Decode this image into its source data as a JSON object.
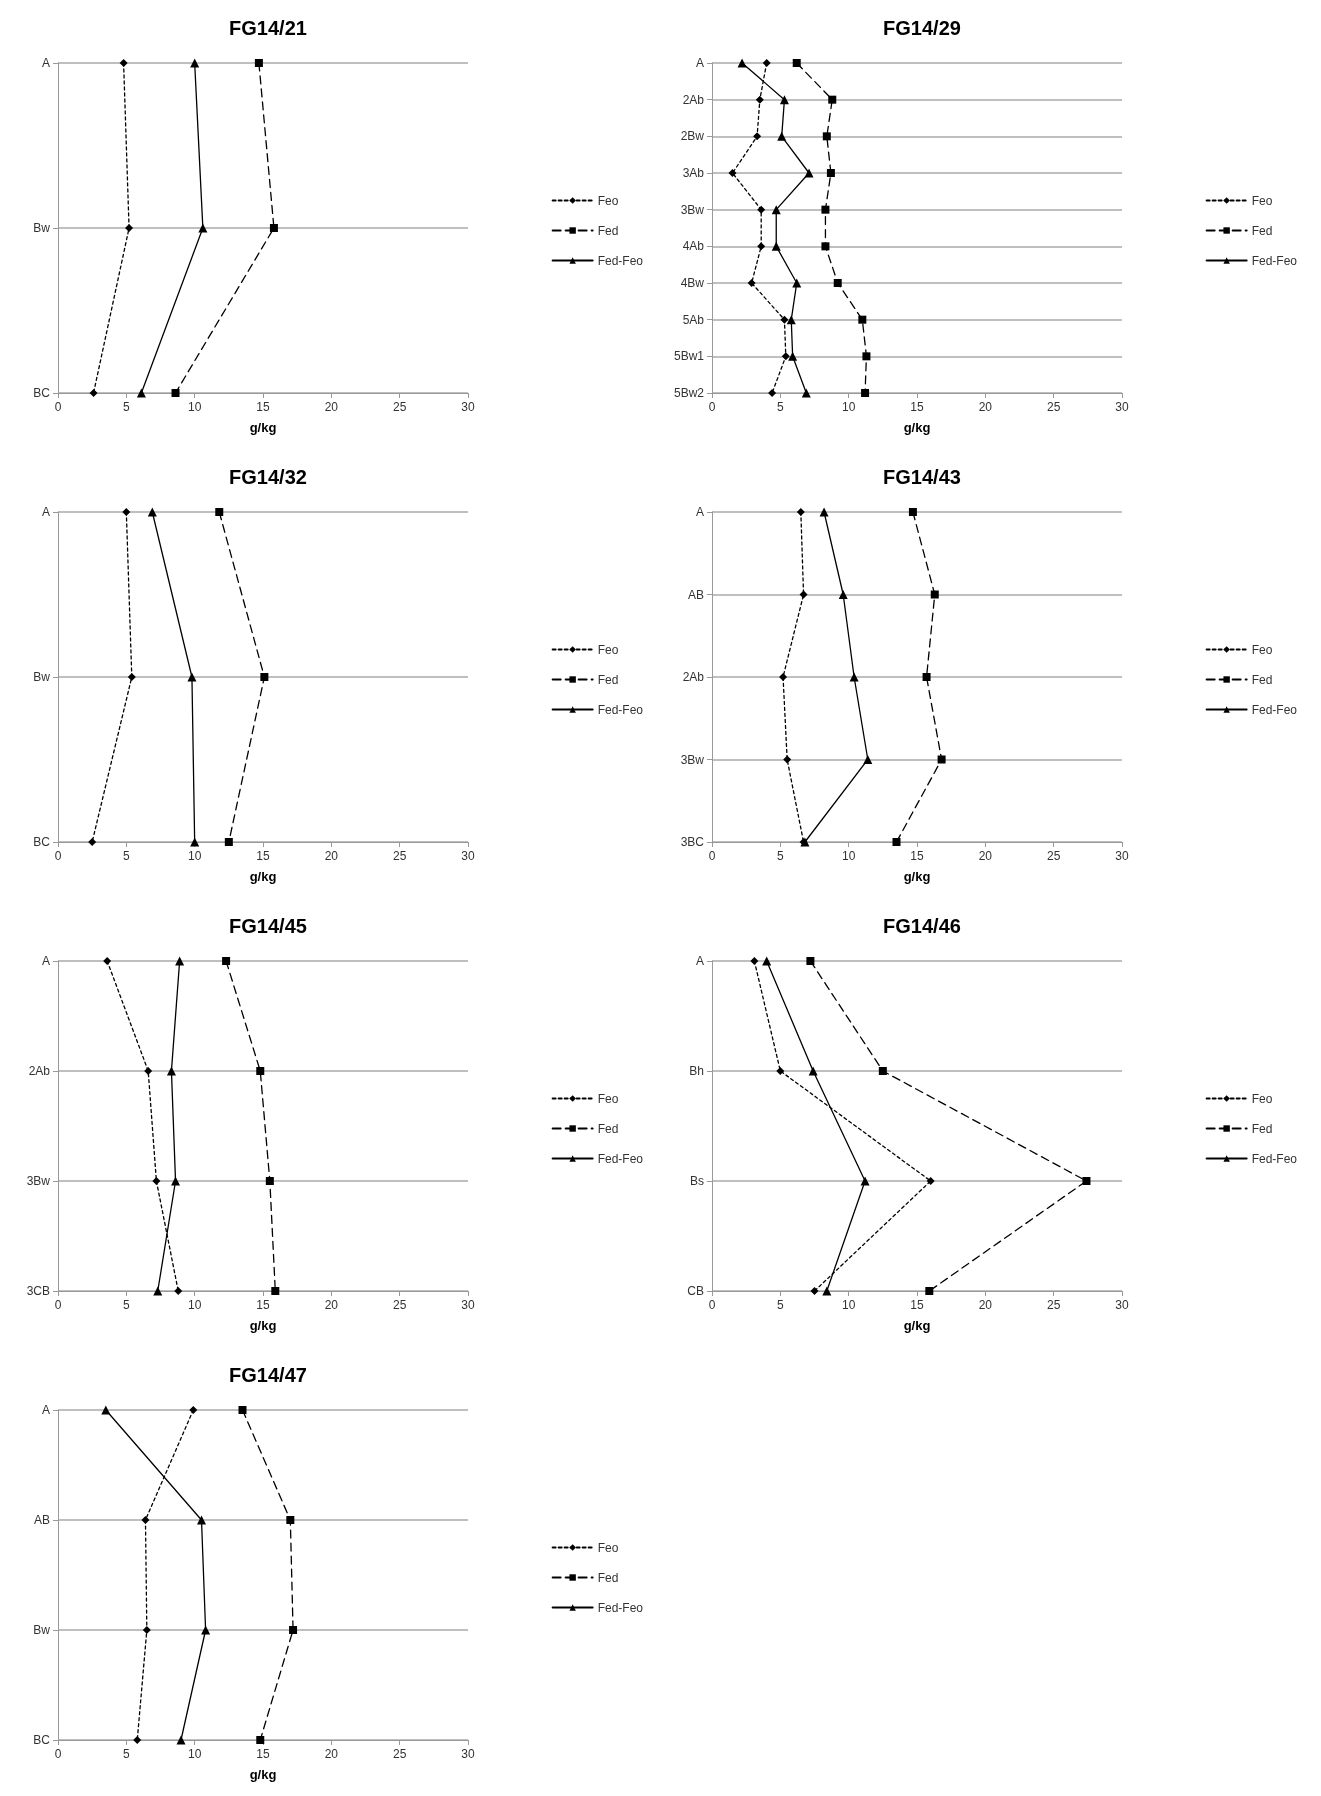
{
  "chart_data": [
    {
      "type": "line",
      "title": "FG14/21",
      "xlabel": "g/kg",
      "orientation": "horizontal",
      "categories": [
        "A",
        "Bw",
        "BC"
      ],
      "xlim": [
        0,
        30
      ],
      "xticks": [
        0,
        5,
        10,
        15,
        20,
        25,
        30
      ],
      "grid": "y",
      "legend": "right",
      "series": [
        {
          "name": "Feo",
          "color": "#000000",
          "marker": "diamond",
          "line_style": "dotted",
          "values": [
            4.8,
            5.2,
            2.6
          ]
        },
        {
          "name": "Fed",
          "color": "#000000",
          "marker": "square",
          "line_style": "dashed",
          "values": [
            14.7,
            15.8,
            8.6
          ]
        },
        {
          "name": "Fed-Feo",
          "color": "#000000",
          "marker": "triangle",
          "line_style": "solid",
          "values": [
            10.0,
            10.6,
            6.1
          ]
        }
      ]
    },
    {
      "type": "line",
      "title": "FG14/29",
      "xlabel": "g/kg",
      "orientation": "horizontal",
      "categories": [
        "A",
        "2Ab",
        "2Bw",
        "3Ab",
        "3Bw",
        "4Ab",
        "4Bw",
        "5Ab",
        "5Bw1",
        "5Bw2"
      ],
      "xlim": [
        0,
        30
      ],
      "xticks": [
        0,
        5,
        10,
        15,
        20,
        25,
        30
      ],
      "grid": "y",
      "legend": "right",
      "series": [
        {
          "name": "Feo",
          "color": "#000000",
          "marker": "diamond",
          "line_style": "dotted",
          "values": [
            4.0,
            3.5,
            3.3,
            1.5,
            3.6,
            3.6,
            2.9,
            5.3,
            5.4,
            4.4
          ]
        },
        {
          "name": "Fed",
          "color": "#000000",
          "marker": "square",
          "line_style": "dashed",
          "values": [
            6.2,
            8.8,
            8.4,
            8.7,
            8.3,
            8.3,
            9.2,
            11.0,
            11.3,
            11.2
          ]
        },
        {
          "name": "Fed-Feo",
          "color": "#000000",
          "marker": "triangle",
          "line_style": "solid",
          "values": [
            2.2,
            5.3,
            5.1,
            7.1,
            4.7,
            4.7,
            6.2,
            5.8,
            5.9,
            6.9
          ]
        }
      ]
    },
    {
      "type": "line",
      "title": "FG14/32",
      "xlabel": "g/kg",
      "orientation": "horizontal",
      "categories": [
        "A",
        "Bw",
        "BC"
      ],
      "xlim": [
        0,
        30
      ],
      "xticks": [
        0,
        5,
        10,
        15,
        20,
        25,
        30
      ],
      "grid": "y",
      "legend": "right",
      "series": [
        {
          "name": "Feo",
          "color": "#000000",
          "marker": "diamond",
          "line_style": "dotted",
          "values": [
            5.0,
            5.4,
            2.5
          ]
        },
        {
          "name": "Fed",
          "color": "#000000",
          "marker": "square",
          "line_style": "dashed",
          "values": [
            11.8,
            15.1,
            12.5
          ]
        },
        {
          "name": "Fed-Feo",
          "color": "#000000",
          "marker": "triangle",
          "line_style": "solid",
          "values": [
            6.9,
            9.8,
            10.0
          ]
        }
      ]
    },
    {
      "type": "line",
      "title": "FG14/43",
      "xlabel": "g/kg",
      "orientation": "horizontal",
      "categories": [
        "A",
        "AB",
        "2Ab",
        "3Bw",
        "3BC"
      ],
      "xlim": [
        0,
        30
      ],
      "xticks": [
        0,
        5,
        10,
        15,
        20,
        25,
        30
      ],
      "grid": "y",
      "legend": "right",
      "series": [
        {
          "name": "Feo",
          "color": "#000000",
          "marker": "diamond",
          "line_style": "dotted",
          "values": [
            6.5,
            6.7,
            5.2,
            5.5,
            6.7
          ]
        },
        {
          "name": "Fed",
          "color": "#000000",
          "marker": "square",
          "line_style": "dashed",
          "values": [
            14.7,
            16.3,
            15.7,
            16.8,
            13.5
          ]
        },
        {
          "name": "Fed-Feo",
          "color": "#000000",
          "marker": "triangle",
          "line_style": "solid",
          "values": [
            8.2,
            9.6,
            10.4,
            11.4,
            6.8
          ]
        }
      ]
    },
    {
      "type": "line",
      "title": "FG14/45",
      "xlabel": "g/kg",
      "orientation": "horizontal",
      "categories": [
        "A",
        "2Ab",
        "3Bw",
        "3CB"
      ],
      "xlim": [
        0,
        30
      ],
      "xticks": [
        0,
        5,
        10,
        15,
        20,
        25,
        30
      ],
      "grid": "y",
      "legend": "right",
      "series": [
        {
          "name": "Feo",
          "color": "#000000",
          "marker": "diamond",
          "line_style": "dotted",
          "values": [
            3.6,
            6.6,
            7.2,
            8.8
          ]
        },
        {
          "name": "Fed",
          "color": "#000000",
          "marker": "square",
          "line_style": "dashed",
          "values": [
            12.3,
            14.8,
            15.5,
            15.9
          ]
        },
        {
          "name": "Fed-Feo",
          "color": "#000000",
          "marker": "triangle",
          "line_style": "solid",
          "values": [
            8.9,
            8.3,
            8.6,
            7.3
          ]
        }
      ]
    },
    {
      "type": "line",
      "title": "FG14/46",
      "xlabel": "g/kg",
      "orientation": "horizontal",
      "categories": [
        "A",
        "Bh",
        "Bs",
        "CB"
      ],
      "xlim": [
        0,
        30
      ],
      "xticks": [
        0,
        5,
        10,
        15,
        20,
        25,
        30
      ],
      "grid": "y",
      "legend": "right",
      "series": [
        {
          "name": "Feo",
          "color": "#000000",
          "marker": "diamond",
          "line_style": "dotted",
          "values": [
            3.1,
            5.0,
            16.0,
            7.5
          ]
        },
        {
          "name": "Fed",
          "color": "#000000",
          "marker": "square",
          "line_style": "dashed",
          "values": [
            7.2,
            12.5,
            27.4,
            15.9
          ]
        },
        {
          "name": "Fed-Feo",
          "color": "#000000",
          "marker": "triangle",
          "line_style": "solid",
          "values": [
            4.0,
            7.4,
            11.2,
            8.4
          ]
        }
      ]
    },
    {
      "type": "line",
      "title": "FG14/47",
      "xlabel": "g/kg",
      "orientation": "horizontal",
      "categories": [
        "A",
        "AB",
        "Bw",
        "BC"
      ],
      "xlim": [
        0,
        30
      ],
      "xticks": [
        0,
        5,
        10,
        15,
        20,
        25,
        30
      ],
      "grid": "y",
      "legend": "right",
      "series": [
        {
          "name": "Feo",
          "color": "#000000",
          "marker": "diamond",
          "line_style": "dotted",
          "values": [
            9.9,
            6.4,
            6.5,
            5.8
          ]
        },
        {
          "name": "Fed",
          "color": "#000000",
          "marker": "square",
          "line_style": "dashed",
          "values": [
            13.5,
            17.0,
            17.2,
            14.8
          ]
        },
        {
          "name": "Fed-Feo",
          "color": "#000000",
          "marker": "triangle",
          "line_style": "solid",
          "values": [
            3.5,
            10.5,
            10.8,
            9.0
          ]
        }
      ]
    }
  ]
}
